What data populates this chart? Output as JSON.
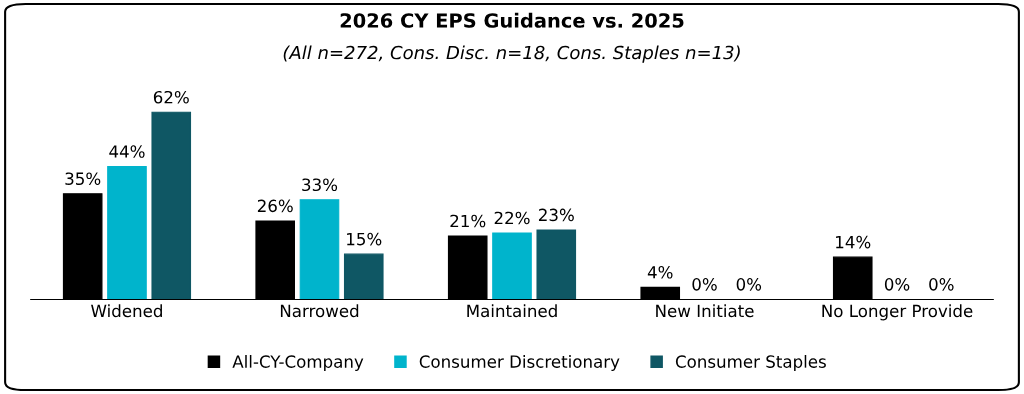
{
  "chart_data": {
    "type": "bar",
    "title": "2026 CY EPS Guidance vs. 2025",
    "subtitle": "(All n=272, Cons. Disc. n=18, Cons. Staples n=13)",
    "categories": [
      "Widened",
      "Narrowed",
      "Maintained",
      "New Initiate",
      "No Longer Provide"
    ],
    "series": [
      {
        "name": "All-CY-Company",
        "color": "#000000",
        "values": [
          35,
          26,
          21,
          4,
          14
        ],
        "value_labels": [
          "35%",
          "26%",
          "21%",
          "4%",
          "14%"
        ]
      },
      {
        "name": "Consumer Discretionary",
        "color": "#00b4cc",
        "values": [
          44,
          33,
          22,
          0,
          0
        ],
        "value_labels": [
          "44%",
          "33%",
          "22%",
          "0%",
          "0%"
        ]
      },
      {
        "name": "Consumer Staples",
        "color": "#0f5764",
        "values": [
          62,
          15,
          23,
          0,
          0
        ],
        "value_labels": [
          "62%",
          "15%",
          "23%",
          "0%",
          "0%"
        ]
      }
    ],
    "grid": false,
    "legend": "bottom"
  }
}
